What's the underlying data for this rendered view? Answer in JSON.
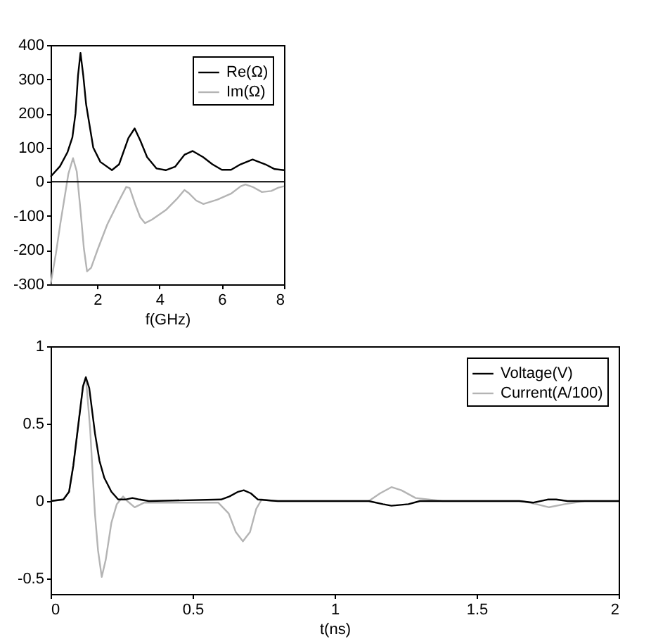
{
  "chart_data": [
    {
      "type": "line",
      "xlabel": "f(GHz)",
      "xlim": [
        0.5,
        8
      ],
      "xticks": [
        2,
        4,
        6,
        8
      ],
      "ylim": [
        -300,
        400
      ],
      "yticks": [
        -300,
        -200,
        -100,
        0,
        100,
        200,
        300,
        400
      ],
      "legend": "top right",
      "ref_lines": [
        {
          "axis": "y",
          "value": 0,
          "color": "#000000"
        }
      ],
      "series": [
        {
          "name": "Re(Ω)",
          "color": "#000000",
          "x": [
            0.5,
            0.8,
            1.04,
            1.2,
            1.3,
            1.38,
            1.46,
            1.55,
            1.64,
            1.87,
            2.1,
            2.47,
            2.7,
            3.0,
            3.2,
            3.38,
            3.6,
            3.9,
            4.2,
            4.5,
            4.8,
            5.06,
            5.4,
            5.7,
            6.0,
            6.3,
            6.6,
            6.99,
            7.4,
            7.7,
            8.0
          ],
          "values": [
            15,
            45,
            86,
            130,
            200,
            310,
            377,
            310,
            227,
            100,
            58,
            34,
            51,
            128,
            156,
            121,
            72,
            39,
            34,
            44,
            79,
            90,
            72,
            51,
            35,
            35,
            51,
            65,
            51,
            37,
            34
          ]
        },
        {
          "name": "Im(Ω)",
          "color": "#b4b4b4",
          "x": [
            0.5,
            0.67,
            0.82,
            0.97,
            1.07,
            1.22,
            1.34,
            1.46,
            1.57,
            1.67,
            1.8,
            2.02,
            2.32,
            2.7,
            2.93,
            3.04,
            3.23,
            3.38,
            3.53,
            3.75,
            4.2,
            4.58,
            4.8,
            4.95,
            5.18,
            5.41,
            5.86,
            6.31,
            6.61,
            6.76,
            6.99,
            7.29,
            7.59,
            7.82,
            8.0
          ],
          "values": [
            -300,
            -210,
            -118,
            -34,
            23,
            69,
            30,
            -83,
            -196,
            -262,
            -252,
            -196,
            -125,
            -55,
            -15,
            -18,
            -69,
            -104,
            -121,
            -111,
            -83,
            -48,
            -24,
            -34,
            -55,
            -65,
            -52,
            -34,
            -13,
            -8,
            -15,
            -30,
            -27,
            -17,
            -13
          ]
        }
      ]
    },
    {
      "type": "line",
      "xlabel": "t(ns)",
      "xlim": [
        0,
        2
      ],
      "xticks": [
        0,
        0.5,
        1,
        1.5,
        2
      ],
      "ylim": [
        -0.6,
        1
      ],
      "yticks": [
        -0.5,
        0,
        0.5,
        1
      ],
      "legend": "top right",
      "series": [
        {
          "name": "Voltage(V)",
          "color": "#000000",
          "x": [
            0,
            0.045,
            0.065,
            0.08,
            0.098,
            0.114,
            0.124,
            0.136,
            0.156,
            0.172,
            0.189,
            0.214,
            0.238,
            0.263,
            0.288,
            0.313,
            0.346,
            0.6,
            0.63,
            0.66,
            0.68,
            0.705,
            0.73,
            0.8,
            1.0,
            1.12,
            1.17,
            1.2,
            1.26,
            1.3,
            1.4,
            1.65,
            1.7,
            1.75,
            1.78,
            1.82,
            1.9,
            2.0
          ],
          "values": [
            0,
            0.01,
            0.06,
            0.23,
            0.5,
            0.74,
            0.8,
            0.73,
            0.44,
            0.26,
            0.15,
            0.06,
            0.01,
            0.01,
            0.02,
            0.01,
            0,
            0.01,
            0.03,
            0.06,
            0.07,
            0.05,
            0.01,
            0,
            0,
            0,
            -0.02,
            -0.03,
            -0.02,
            0,
            0,
            0,
            -0.01,
            0.01,
            0.01,
            0,
            0,
            0
          ]
        },
        {
          "name": "Current(A/100)",
          "color": "#b4b4b4",
          "x": [
            0,
            0.045,
            0.065,
            0.08,
            0.098,
            0.114,
            0.124,
            0.139,
            0.156,
            0.167,
            0.18,
            0.194,
            0.214,
            0.233,
            0.255,
            0.27,
            0.296,
            0.33,
            0.36,
            0.59,
            0.627,
            0.652,
            0.677,
            0.702,
            0.724,
            0.743,
            0.78,
            1.0,
            1.12,
            1.16,
            1.2,
            1.235,
            1.285,
            1.38,
            1.66,
            1.71,
            1.755,
            1.81,
            1.88,
            2.0
          ],
          "values": [
            0,
            0.01,
            0.06,
            0.23,
            0.5,
            0.74,
            0.8,
            0.47,
            -0.08,
            -0.32,
            -0.49,
            -0.38,
            -0.14,
            -0.02,
            0.03,
            0,
            -0.04,
            -0.01,
            -0.01,
            -0.01,
            -0.08,
            -0.2,
            -0.26,
            -0.2,
            -0.05,
            0.01,
            0,
            0,
            0,
            0.05,
            0.09,
            0.07,
            0.02,
            0,
            0,
            -0.02,
            -0.04,
            -0.02,
            0,
            0
          ]
        }
      ]
    }
  ]
}
